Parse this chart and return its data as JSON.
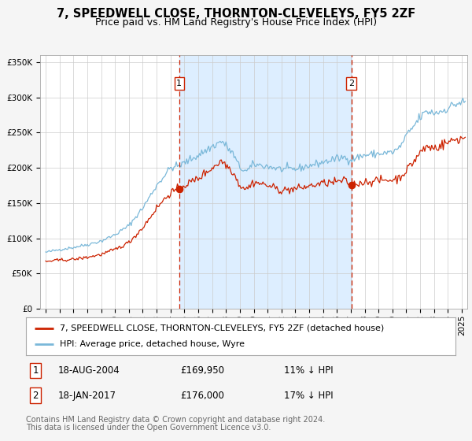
{
  "title": "7, SPEEDWELL CLOSE, THORNTON-CLEVELEYS, FY5 2ZF",
  "subtitle": "Price paid vs. HM Land Registry's House Price Index (HPI)",
  "legend_line1": "7, SPEEDWELL CLOSE, THORNTON-CLEVELEYS, FY5 2ZF (detached house)",
  "legend_line2": "HPI: Average price, detached house, Wyre",
  "annotation1_label": "1",
  "annotation1_date": "18-AUG-2004",
  "annotation1_price": "£169,950",
  "annotation1_hpi": "11% ↓ HPI",
  "annotation2_label": "2",
  "annotation2_date": "18-JAN-2017",
  "annotation2_price": "£176,000",
  "annotation2_hpi": "17% ↓ HPI",
  "footnote1": "Contains HM Land Registry data © Crown copyright and database right 2024.",
  "footnote2": "This data is licensed under the Open Government Licence v3.0.",
  "sale1_year": 2004.63,
  "sale1_price": 169950,
  "sale2_year": 2017.05,
  "sale2_price": 176000,
  "hpi_color": "#7ab8d9",
  "property_color": "#cc2200",
  "dot_color": "#cc2200",
  "vline_color": "#cc2200",
  "shade_color": "#ddeeff",
  "background_color": "#f5f5f5",
  "plot_background": "#ffffff",
  "grid_color": "#cccccc",
  "ylim": [
    0,
    360000
  ],
  "xlim_start": 1994.6,
  "xlim_end": 2025.4,
  "title_fontsize": 10.5,
  "subtitle_fontsize": 9,
  "tick_fontsize": 7.5,
  "legend_fontsize": 8.5,
  "annotation_fontsize": 8.5,
  "footnote_fontsize": 7
}
